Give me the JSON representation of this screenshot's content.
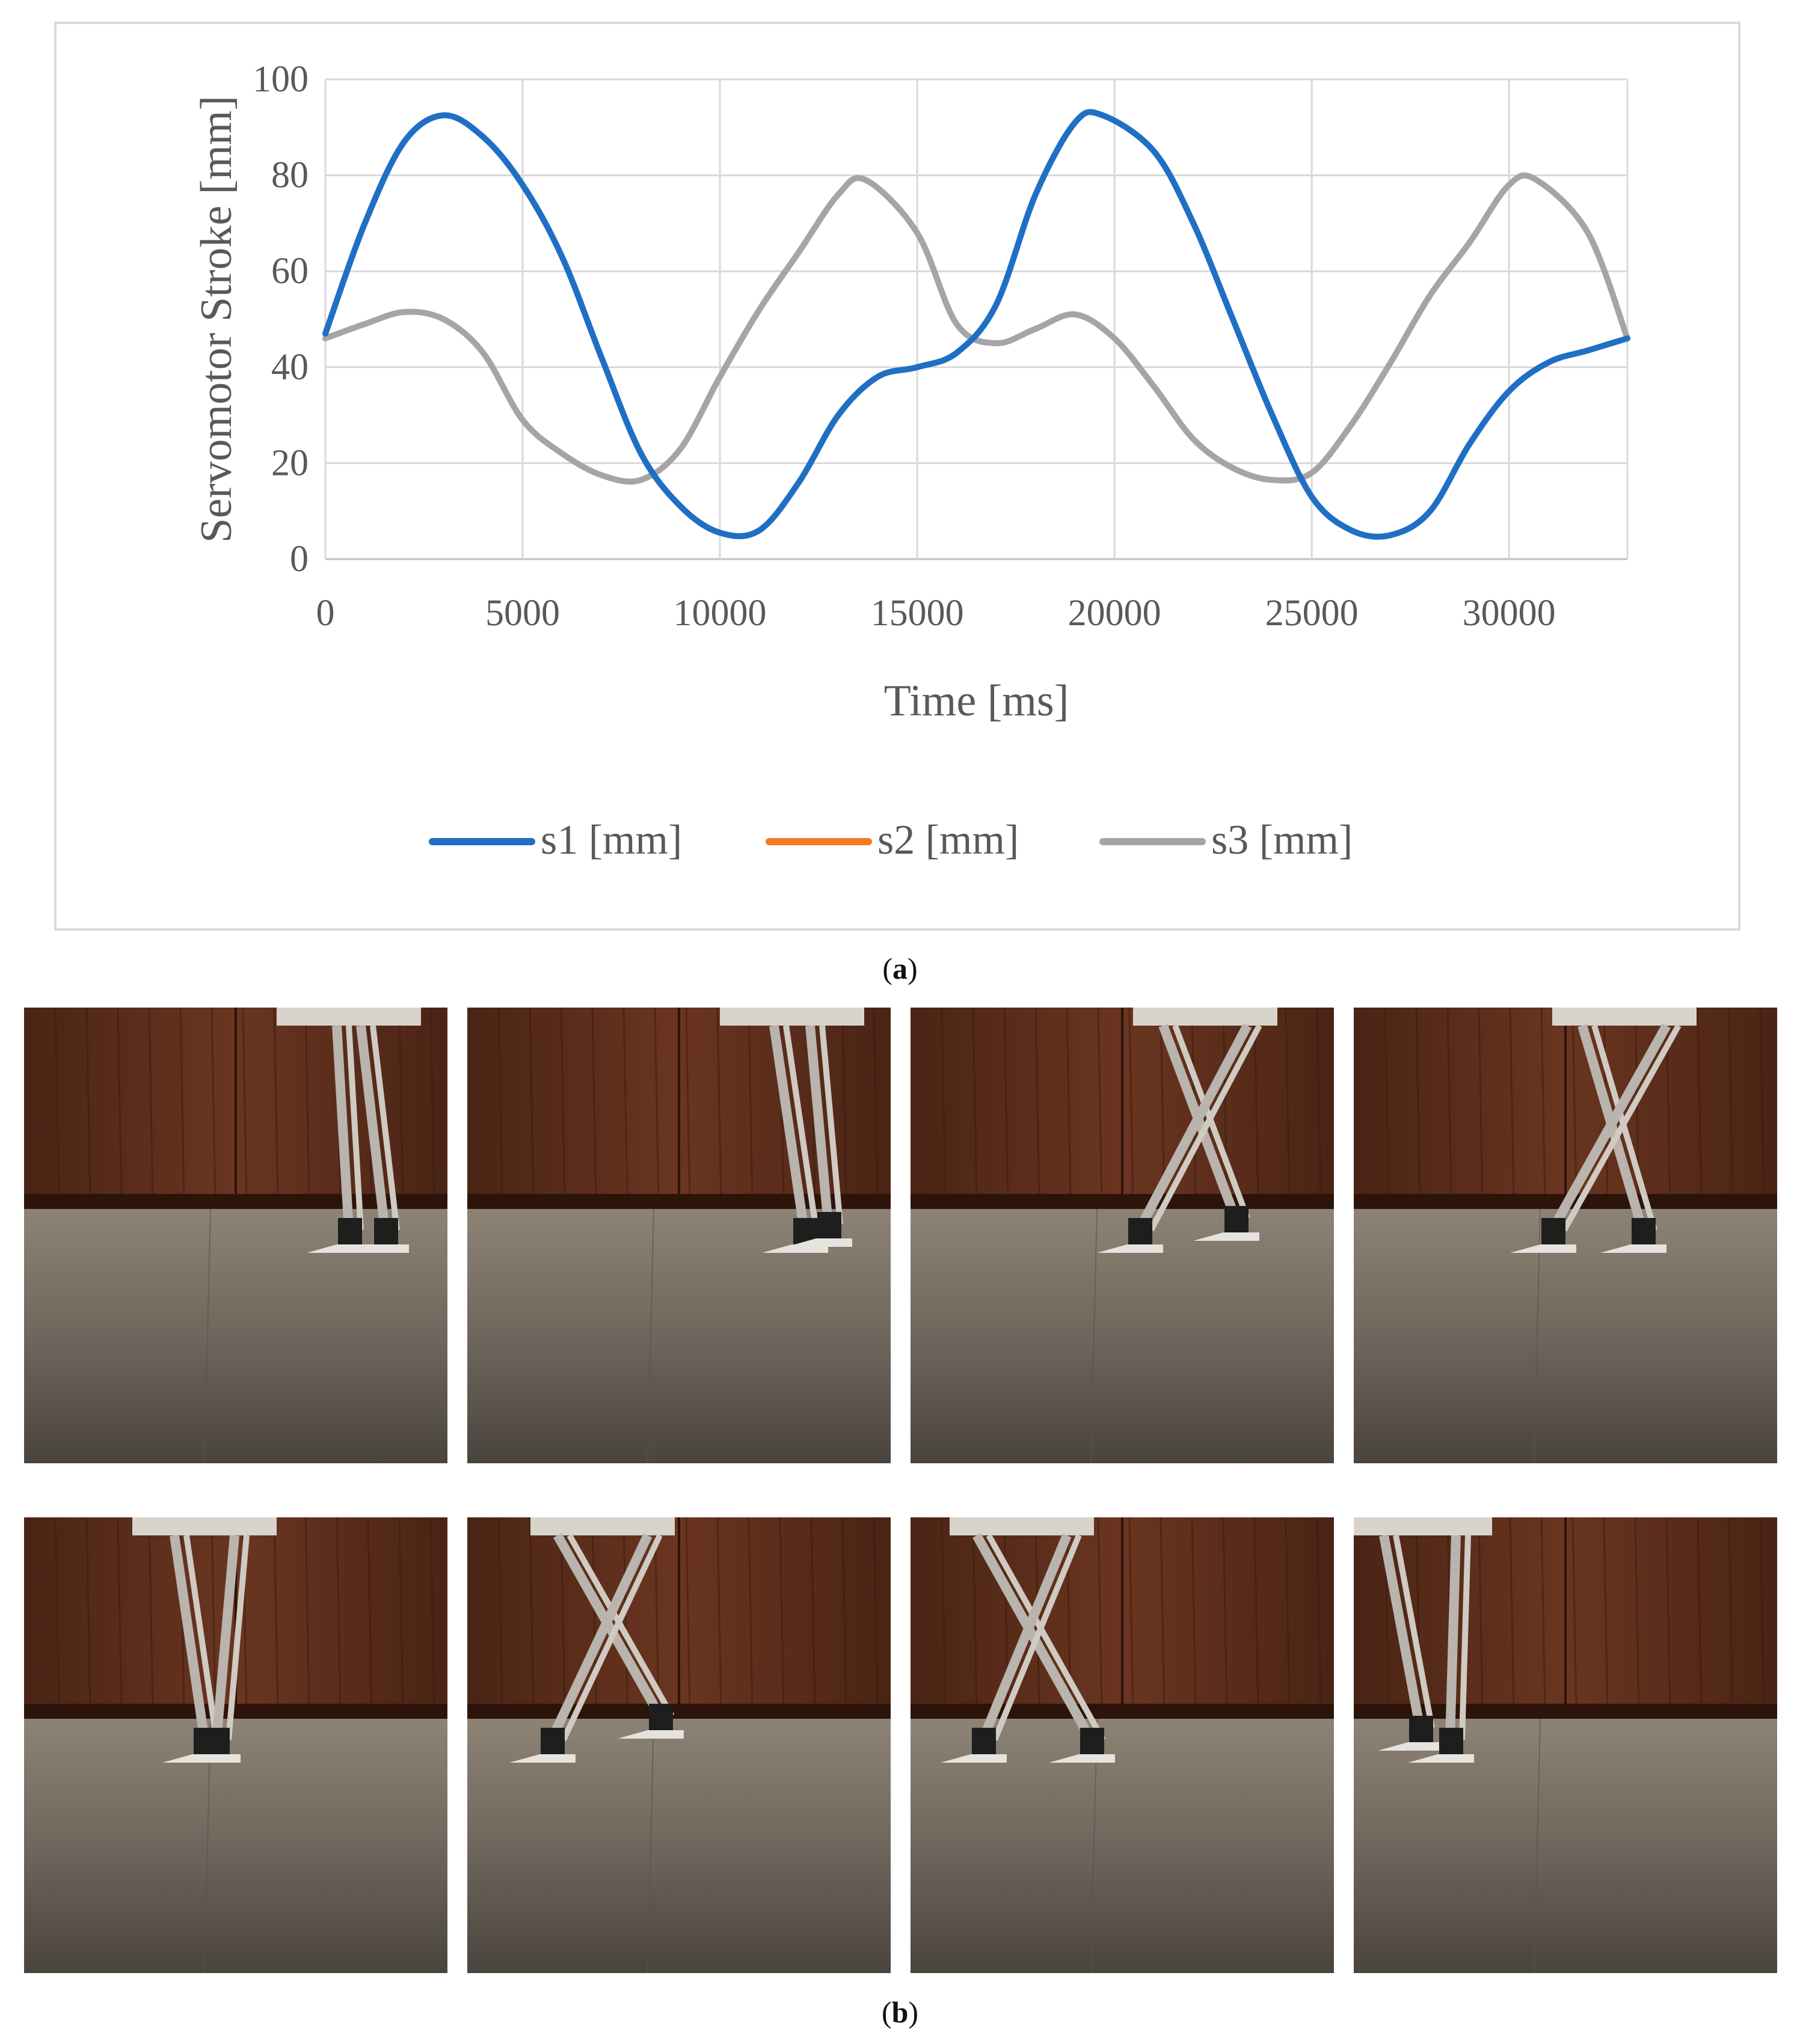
{
  "chart_data": {
    "type": "line",
    "title": "",
    "xlabel": "Time [ms]",
    "ylabel": "Servomotor Stroke [mm]",
    "xlim": [
      0,
      33000
    ],
    "ylim": [
      0,
      100
    ],
    "xticks": [
      0,
      5000,
      10000,
      15000,
      20000,
      25000,
      30000
    ],
    "yticks": [
      0,
      20,
      40,
      60,
      80,
      100
    ],
    "grid": true,
    "legend_position": "bottom",
    "series": [
      {
        "name": "s1 [mm]",
        "color": "#1f6fc5",
        "points": [
          [
            0,
            47
          ],
          [
            1000,
            70
          ],
          [
            2000,
            87
          ],
          [
            3000,
            92.5
          ],
          [
            4000,
            88
          ],
          [
            5000,
            78
          ],
          [
            6000,
            63
          ],
          [
            7000,
            42
          ],
          [
            8000,
            22
          ],
          [
            9000,
            11
          ],
          [
            10000,
            5.5
          ],
          [
            11000,
            6
          ],
          [
            12000,
            16
          ],
          [
            13000,
            30
          ],
          [
            14000,
            38
          ],
          [
            15000,
            40
          ],
          [
            16000,
            43
          ],
          [
            17000,
            53
          ],
          [
            18000,
            76
          ],
          [
            19000,
            91
          ],
          [
            19700,
            92.5
          ],
          [
            21000,
            85
          ],
          [
            22000,
            70
          ],
          [
            23000,
            50
          ],
          [
            24000,
            30
          ],
          [
            25000,
            13
          ],
          [
            26000,
            6
          ],
          [
            27000,
            5
          ],
          [
            28000,
            10
          ],
          [
            29000,
            24
          ],
          [
            30000,
            35
          ],
          [
            31000,
            41
          ],
          [
            32000,
            43.5
          ],
          [
            33000,
            46
          ]
        ]
      },
      {
        "name": "s2 [mm]",
        "color": "#f47b20",
        "points": []
      },
      {
        "name": "s3 [mm]",
        "color": "#a5a5a5",
        "points": [
          [
            0,
            46
          ],
          [
            1000,
            49
          ],
          [
            2000,
            51.5
          ],
          [
            3000,
            50
          ],
          [
            4000,
            43
          ],
          [
            5000,
            29
          ],
          [
            6000,
            22
          ],
          [
            7000,
            17.5
          ],
          [
            8000,
            16.5
          ],
          [
            9000,
            23
          ],
          [
            10000,
            38
          ],
          [
            11000,
            52
          ],
          [
            12000,
            64
          ],
          [
            13000,
            76
          ],
          [
            13700,
            79
          ],
          [
            15000,
            68
          ],
          [
            16000,
            49
          ],
          [
            17000,
            45
          ],
          [
            18000,
            48
          ],
          [
            19000,
            51
          ],
          [
            20000,
            46
          ],
          [
            21000,
            36
          ],
          [
            22000,
            25
          ],
          [
            23000,
            19
          ],
          [
            24000,
            16.5
          ],
          [
            25000,
            18
          ],
          [
            26000,
            28
          ],
          [
            27000,
            41
          ],
          [
            28000,
            55
          ],
          [
            29000,
            66
          ],
          [
            30000,
            78
          ],
          [
            30700,
            79
          ],
          [
            32000,
            68
          ],
          [
            33000,
            46
          ]
        ]
      }
    ]
  },
  "captions": {
    "a": "a",
    "b": "b"
  },
  "photos": [
    {
      "id": "frame-1"
    },
    {
      "id": "frame-2"
    },
    {
      "id": "frame-3"
    },
    {
      "id": "frame-4"
    },
    {
      "id": "frame-5"
    },
    {
      "id": "frame-6"
    },
    {
      "id": "frame-7"
    },
    {
      "id": "frame-8"
    }
  ]
}
